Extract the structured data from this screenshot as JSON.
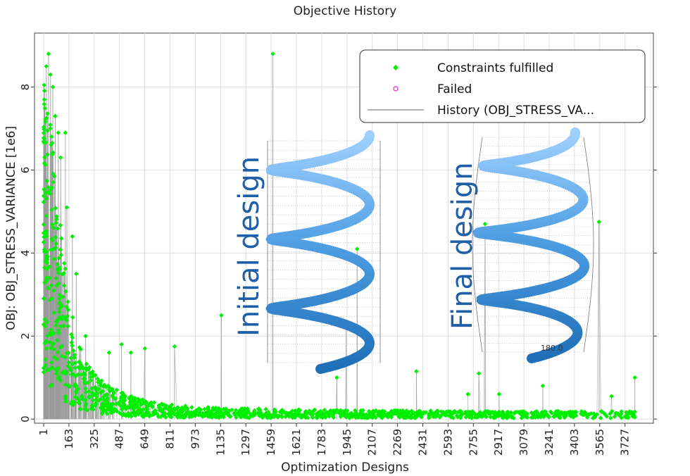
{
  "chart_data": {
    "type": "scatter",
    "title": "Objective History",
    "xlabel": "Optimization Designs",
    "ylabel": "OBJ: OBJ_STRESS_VARIANCE [1e6]",
    "xlim": [
      1,
      3850
    ],
    "ylim": [
      -0.1,
      9.3
    ],
    "x_ticks": [
      1,
      163,
      325,
      487,
      649,
      811,
      973,
      1135,
      1297,
      1459,
      1621,
      1783,
      1945,
      2107,
      2269,
      2431,
      2593,
      2755,
      2917,
      3079,
      3241,
      3403,
      3565,
      3727
    ],
    "y_ticks": [
      0,
      2,
      4,
      6,
      8
    ],
    "grid": true,
    "legend": {
      "placement": "top-right",
      "entries": [
        {
          "label": "Constraints fulfilled",
          "color": "#00ee00",
          "marker": "diamond"
        },
        {
          "label": "Failed",
          "color": "#e020e0",
          "marker": "circle"
        },
        {
          "label": "History (OBJ_STRESS_VA...",
          "color": "#999999",
          "marker": "line"
        }
      ]
    },
    "envelope": {
      "x": [
        1,
        20,
        40,
        60,
        80,
        100,
        130,
        160,
        200,
        250,
        300,
        350,
        400,
        500,
        600,
        700,
        800,
        900,
        1000,
        1200,
        1400,
        1600,
        2000,
        2500,
        3000,
        3500,
        3800
      ],
      "y": [
        6.5,
        6.0,
        5.4,
        4.8,
        4.2,
        3.7,
        3.0,
        2.3,
        1.6,
        1.15,
        0.9,
        0.75,
        0.62,
        0.48,
        0.38,
        0.3,
        0.26,
        0.24,
        0.22,
        0.2,
        0.18,
        0.17,
        0.16,
        0.15,
        0.14,
        0.14,
        0.14
      ]
    },
    "outliers": [
      {
        "x": 18,
        "y": 8.5
      },
      {
        "x": 32,
        "y": 8.8
      },
      {
        "x": 45,
        "y": 8.3
      },
      {
        "x": 60,
        "y": 8.0
      },
      {
        "x": 75,
        "y": 7.3
      },
      {
        "x": 95,
        "y": 6.9
      },
      {
        "x": 110,
        "y": 6.3
      },
      {
        "x": 140,
        "y": 6.9
      },
      {
        "x": 60,
        "y": 1.8
      },
      {
        "x": 30,
        "y": 1.2
      },
      {
        "x": 150,
        "y": 5.1
      },
      {
        "x": 185,
        "y": 4.4
      },
      {
        "x": 210,
        "y": 3.5
      },
      {
        "x": 270,
        "y": 2.0
      },
      {
        "x": 420,
        "y": 1.6
      },
      {
        "x": 500,
        "y": 1.8
      },
      {
        "x": 560,
        "y": 1.6
      },
      {
        "x": 650,
        "y": 1.7
      },
      {
        "x": 840,
        "y": 1.75
      },
      {
        "x": 1140,
        "y": 2.5
      },
      {
        "x": 1470,
        "y": 8.8
      },
      {
        "x": 1880,
        "y": 1.0
      },
      {
        "x": 1940,
        "y": 2.3
      },
      {
        "x": 2010,
        "y": 4.1
      },
      {
        "x": 2390,
        "y": 1.15
      },
      {
        "x": 2720,
        "y": 0.6
      },
      {
        "x": 2790,
        "y": 1.1
      },
      {
        "x": 2830,
        "y": 4.7
      },
      {
        "x": 2920,
        "y": 0.6
      },
      {
        "x": 3200,
        "y": 0.8
      },
      {
        "x": 3560,
        "y": 4.75
      },
      {
        "x": 3640,
        "y": 0.55
      },
      {
        "x": 3790,
        "y": 1.0
      }
    ],
    "point_count": 1400,
    "random_seed": 7
  },
  "annotations": {
    "initial_label": "Initial design",
    "final_label": "Final design",
    "initial_dim": "180.0",
    "final_dim": "180.0"
  },
  "colors": {
    "point": "#00ee00",
    "history": "#9a9a9a",
    "spring": "#4a9be0",
    "spring_dark": "#1f6fb8",
    "overlay_text": "#1f5fa8"
  }
}
